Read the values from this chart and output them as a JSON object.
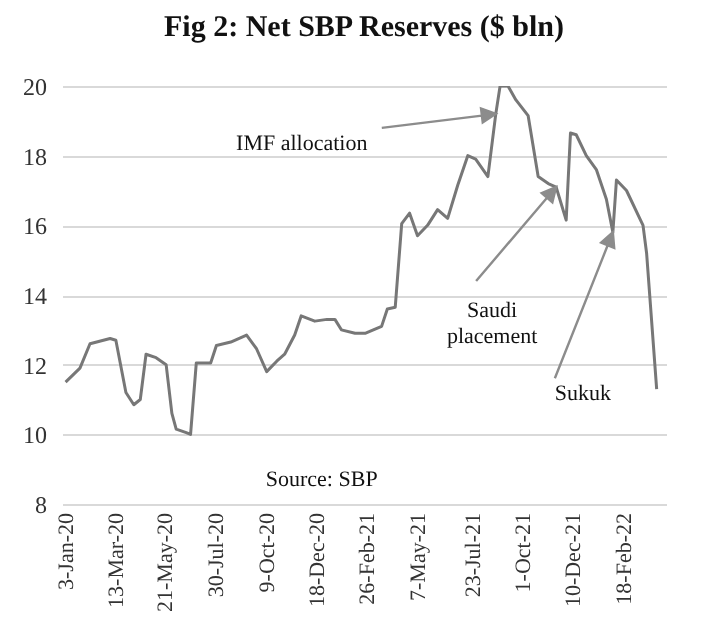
{
  "chart_data": {
    "type": "line",
    "title": "Fig 2:  Net SBP Reserves ($ bln)",
    "x": [
      "2020-01-03",
      "2020-01-23",
      "2020-02-06",
      "2020-03-05",
      "2020-03-13",
      "2020-03-27",
      "2020-04-07",
      "2020-04-16",
      "2020-04-24",
      "2020-05-08",
      "2020-05-22",
      "2020-05-30",
      "2020-06-05",
      "2020-06-19",
      "2020-06-25",
      "2020-07-03",
      "2020-07-23",
      "2020-07-31",
      "2020-08-20",
      "2020-09-11",
      "2020-09-25",
      "2020-10-09",
      "2020-10-23",
      "2020-11-03",
      "2020-11-17",
      "2020-11-26",
      "2020-12-15",
      "2021-01-01",
      "2021-01-12",
      "2021-01-21",
      "2021-02-09",
      "2021-02-23",
      "2021-03-18",
      "2021-03-26",
      "2021-04-06",
      "2021-04-15",
      "2021-04-26",
      "2021-05-07",
      "2021-05-21",
      "2021-06-04",
      "2021-06-18",
      "2021-07-02",
      "2021-07-16",
      "2021-07-27",
      "2021-08-13",
      "2021-08-24",
      "2021-08-30",
      "2021-09-10",
      "2021-09-21",
      "2021-10-08",
      "2021-10-22",
      "2021-11-05",
      "2021-11-16",
      "2021-11-30",
      "2021-12-06",
      "2021-12-14",
      "2021-12-28",
      "2022-01-11",
      "2022-01-25",
      "2022-02-03",
      "2022-02-08",
      "2022-02-22",
      "2022-03-17",
      "2022-03-22",
      "2022-04-05"
    ],
    "series": [
      {
        "color": "#777777",
        "values": [
          11.5,
          11.9,
          12.6,
          12.75,
          12.7,
          11.2,
          10.85,
          11.0,
          12.3,
          12.2,
          12.0,
          10.6,
          10.15,
          10.05,
          10.0,
          12.05,
          12.05,
          12.55,
          12.65,
          12.85,
          12.45,
          11.8,
          12.1,
          12.3,
          12.85,
          13.4,
          13.25,
          13.3,
          13.3,
          13.0,
          12.9,
          12.9,
          13.1,
          13.6,
          13.65,
          16.05,
          16.35,
          15.7,
          16.0,
          16.45,
          16.2,
          17.15,
          18.0,
          17.9,
          17.4,
          19.2,
          20.0,
          20.0,
          19.6,
          19.15,
          17.4,
          17.2,
          17.1,
          16.15,
          18.65,
          18.6,
          18.0,
          17.6,
          16.75,
          15.8,
          17.3,
          17.0,
          16.0,
          15.2,
          11.3
        ]
      }
    ],
    "xlim": [
      "2019-12-29",
      "2022-04-18"
    ],
    "xticks": [
      {
        "value": "2020-01-03",
        "label": "3-Jan-20"
      },
      {
        "value": "2020-03-13",
        "label": "13-Mar-20"
      },
      {
        "value": "2020-05-21",
        "label": "21-May-20"
      },
      {
        "value": "2020-07-30",
        "label": "30-Jul-20"
      },
      {
        "value": "2020-10-09",
        "label": "9-Oct-20"
      },
      {
        "value": "2020-12-18",
        "label": "18-Dec-20"
      },
      {
        "value": "2021-02-26",
        "label": "26-Feb-21"
      },
      {
        "value": "2021-05-07",
        "label": "7-May-21"
      },
      {
        "value": "2021-07-23",
        "label": "23-Jul-21"
      },
      {
        "value": "2021-10-01",
        "label": "1-Oct-21"
      },
      {
        "value": "2021-12-10",
        "label": "10-Dec-21"
      },
      {
        "value": "2022-02-18",
        "label": "18-Feb-22"
      }
    ],
    "ylim": [
      8,
      20
    ],
    "yticks": [
      8,
      10,
      12,
      14,
      16,
      18,
      20
    ],
    "grid": "y",
    "line_style": "solid",
    "annotations": [
      {
        "text": "IMF allocation",
        "x": "2021-08-24",
        "y": 19.2
      },
      {
        "text": "Saudi placement",
        "x": "2021-11-16",
        "y": 17.1
      },
      {
        "text": "Sukuk",
        "x": "2022-02-03",
        "y": 15.8
      },
      "Source: SBP"
    ]
  }
}
